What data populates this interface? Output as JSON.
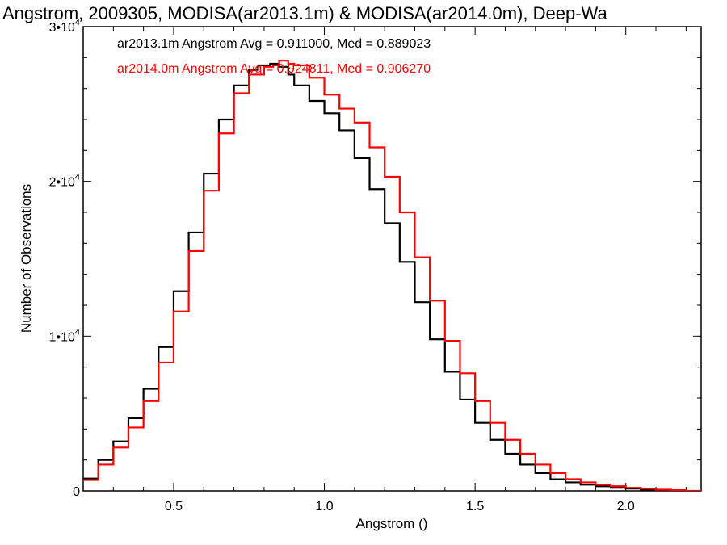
{
  "chart_data": {
    "type": "line",
    "title": "Angstrom, 2009305, MODISA(ar2013.1m) & MODISA(ar2014.0m), Deep-Wa",
    "xlabel": "Angstrom ()",
    "ylabel": "Number of Observations",
    "xlim": [
      0.2,
      2.25
    ],
    "ylim": [
      0,
      30000
    ],
    "xticks": [
      0.5,
      1.0,
      1.5,
      2.0
    ],
    "xtick_labels": [
      "0.5",
      "1.0",
      "1.5",
      "2.0"
    ],
    "yticks": [
      0,
      10000,
      20000,
      30000
    ],
    "ytick_labels": [
      {
        "base": "0",
        "exp": ""
      },
      {
        "base": "1•10",
        "exp": "4"
      },
      {
        "base": "2•10",
        "exp": "4"
      },
      {
        "base": "3•10",
        "exp": "4"
      }
    ],
    "legend": [
      {
        "text": "ar2013.1m Angstrom Avg = 0.911000, Med = 0.889023",
        "color": "#000000"
      },
      {
        "text": "ar2014.0m Angstrom Avg = 0.924811, Med = 0.906270",
        "color": "#ff0000"
      }
    ],
    "series": [
      {
        "color": "#000000",
        "x": [
          0.2,
          0.25,
          0.3,
          0.35,
          0.4,
          0.45,
          0.5,
          0.55,
          0.6,
          0.65,
          0.7,
          0.75,
          0.78,
          0.8,
          0.82,
          0.85,
          0.88,
          0.9,
          0.95,
          1.0,
          1.05,
          1.1,
          1.15,
          1.2,
          1.25,
          1.3,
          1.35,
          1.4,
          1.45,
          1.5,
          1.55,
          1.6,
          1.65,
          1.7,
          1.75,
          1.8,
          1.85,
          1.9,
          1.95,
          2.0,
          2.05,
          2.1,
          2.15
        ],
        "y": [
          800,
          2000,
          3200,
          4700,
          6600,
          9300,
          12900,
          16700,
          20500,
          24000,
          26200,
          27200,
          27500,
          27500,
          27600,
          27400,
          26900,
          26200,
          25200,
          24400,
          23300,
          21500,
          19500,
          17300,
          14800,
          12200,
          9800,
          7700,
          5900,
          4400,
          3300,
          2400,
          1700,
          1150,
          750,
          550,
          400,
          300,
          200,
          150,
          80,
          50,
          0
        ]
      },
      {
        "color": "#ff0000",
        "x": [
          0.2,
          0.25,
          0.3,
          0.35,
          0.4,
          0.45,
          0.5,
          0.55,
          0.6,
          0.65,
          0.7,
          0.75,
          0.8,
          0.83,
          0.85,
          0.88,
          0.9,
          0.95,
          1.0,
          1.05,
          1.1,
          1.15,
          1.2,
          1.25,
          1.3,
          1.35,
          1.4,
          1.45,
          1.5,
          1.55,
          1.6,
          1.65,
          1.7,
          1.75,
          1.8,
          1.85,
          1.9,
          1.95,
          2.0,
          2.05,
          2.1,
          2.15,
          2.2,
          2.25
        ],
        "y": [
          700,
          1700,
          2800,
          4100,
          5800,
          8300,
          11600,
          15500,
          19400,
          23100,
          25700,
          26900,
          27400,
          27500,
          27800,
          27600,
          27500,
          26700,
          25600,
          24700,
          23800,
          22200,
          20300,
          18000,
          15100,
          12300,
          9700,
          7600,
          5800,
          4400,
          3300,
          2400,
          1700,
          1150,
          760,
          550,
          400,
          300,
          200,
          150,
          80,
          50,
          0,
          0
        ]
      }
    ]
  }
}
